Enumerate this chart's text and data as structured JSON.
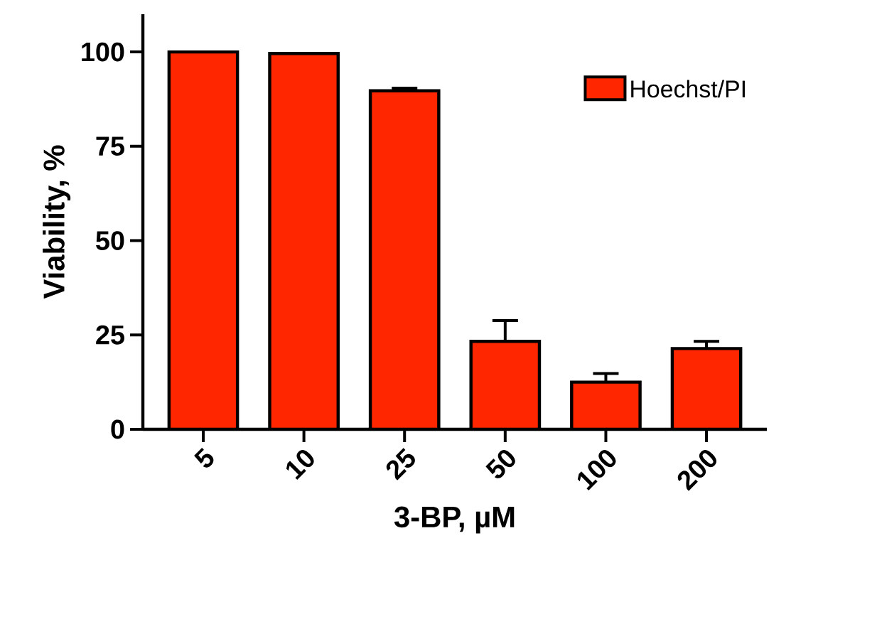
{
  "chart_data": {
    "type": "bar",
    "xlabel": "3-BP, µM",
    "ylabel": "Viability, %",
    "categories": [
      "5",
      "10",
      "25",
      "50",
      "100",
      "200"
    ],
    "series": [
      {
        "name": "Hoechst/PI",
        "color": "#ff2600",
        "values": [
          100,
          99.6,
          89.7,
          23.3,
          12.5,
          21.4
        ],
        "errors": [
          null,
          null,
          0.7,
          5.5,
          2.3,
          1.9
        ]
      }
    ],
    "ylim": [
      0,
      110
    ],
    "yticks": [
      0,
      25,
      50,
      75,
      100
    ],
    "legend": "top right",
    "grid": false
  }
}
